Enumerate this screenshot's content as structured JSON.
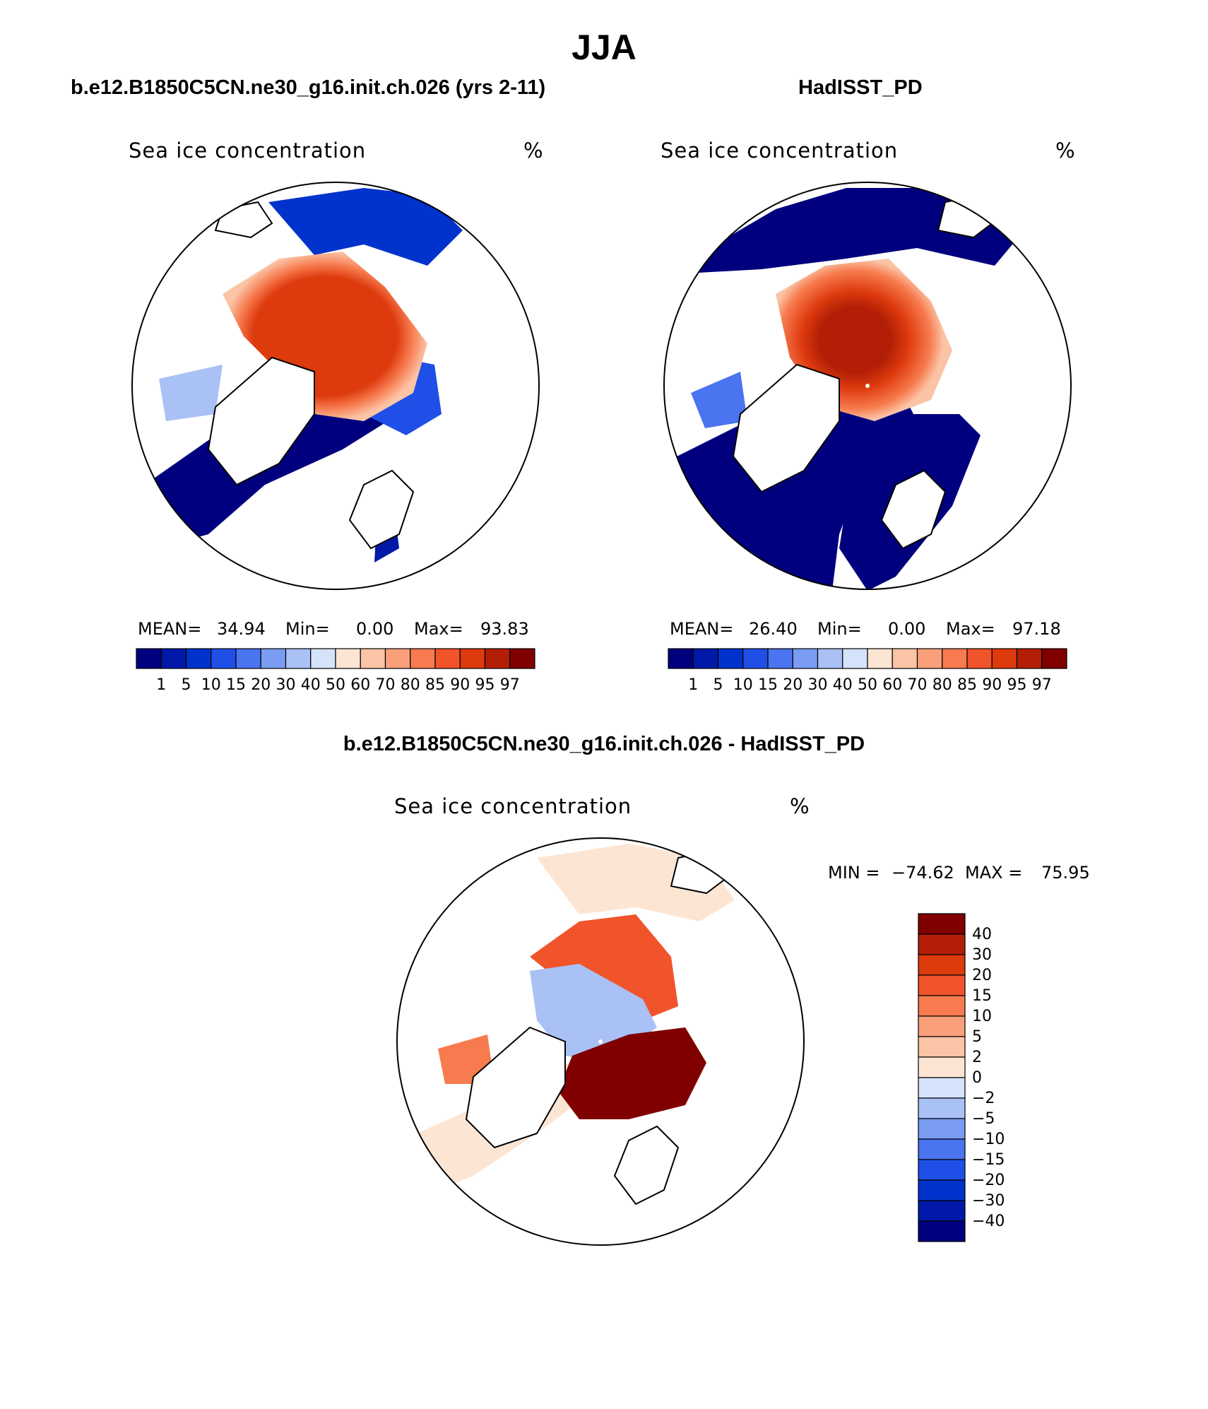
{
  "figure": {
    "season_title": "JJA"
  },
  "panels": [
    {
      "id": "model",
      "title": "b.e12.B1850C5CN.ne30_g16.init.ch.026 (yrs 2-11)",
      "variable": "Sea ice concentration",
      "units": "%",
      "mean_label": "MEAN=",
      "mean_value": "34.94",
      "min_label": "Min=",
      "min_value": "0.00",
      "max_label": "Max=",
      "max_value": "93.83"
    },
    {
      "id": "obs",
      "title": "HadISST_PD",
      "variable": "Sea ice concentration",
      "units": "%",
      "mean_label": "MEAN=",
      "mean_value": "26.40",
      "min_label": "Min=",
      "min_value": "0.00",
      "max_label": "Max=",
      "max_value": "97.18"
    }
  ],
  "diff_panel": {
    "title": "b.e12.B1850C5CN.ne30_g16.init.ch.026 - HadISST_PD",
    "variable": "Sea ice concentration",
    "units": "%",
    "min_label": "MIN =",
    "min_value": "−74.62",
    "max_label": "MAX =",
    "max_value": "75.95"
  },
  "colorbar_conc": {
    "levels": [
      "1",
      "5",
      "10",
      "15",
      "20",
      "30",
      "40",
      "50",
      "60",
      "70",
      "80",
      "85",
      "90",
      "95",
      "97"
    ],
    "colors": [
      "#00007f",
      "#0019a8",
      "#0033cc",
      "#1f4fe6",
      "#4a74f0",
      "#7a9cf2",
      "#a9c1f5",
      "#d4e3fa",
      "#fde5d3",
      "#fbc4a6",
      "#f9a07b",
      "#f77b4f",
      "#f1532a",
      "#dd3a0e",
      "#b21f06",
      "#800000"
    ]
  },
  "colorbar_diff": {
    "levels": [
      "40",
      "30",
      "20",
      "15",
      "10",
      "5",
      "2",
      "0",
      "−2",
      "−5",
      "−10",
      "−15",
      "−20",
      "−30",
      "−40"
    ],
    "colors": [
      "#800000",
      "#b21f06",
      "#dd3a0e",
      "#f1532a",
      "#f77b4f",
      "#f9a07b",
      "#fbc4a6",
      "#fde5d3",
      "#d4e3fa",
      "#a9c1f5",
      "#7a9cf2",
      "#4a74f0",
      "#1f4fe6",
      "#0033cc",
      "#0019a8",
      "#00007f"
    ]
  },
  "colors": {
    "ice_high": "#dd3a0e",
    "ice_peak": "#b21f06",
    "ocean_low": "#00007f",
    "diff_neg": "#a9c1f5",
    "diff_pos": "#800000",
    "diff_weak": "#fde5d3",
    "coast": "#000000"
  }
}
